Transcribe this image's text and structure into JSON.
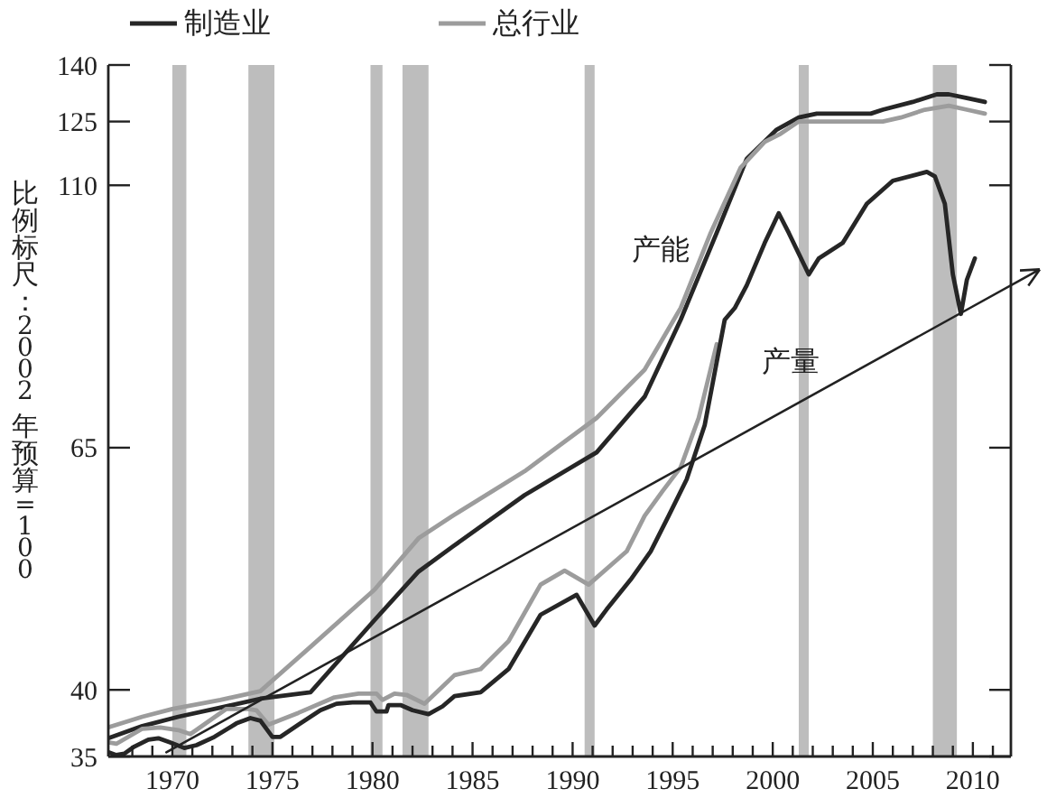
{
  "chart_data": {
    "type": "line",
    "ylabel": "比例标尺：2002 年预算=100",
    "legend": "top left",
    "log": true,
    "xlim": [
      1966.8,
      2011.9
    ],
    "xticks": [
      {
        "value": 1968,
        "label": null
      },
      {
        "value": 1969,
        "label": null
      },
      1970,
      {
        "value": 1971,
        "label": null
      },
      {
        "value": 1972,
        "label": null
      },
      {
        "value": 1973,
        "label": null
      },
      {
        "value": 1974,
        "label": null
      },
      1975,
      {
        "value": 1976,
        "label": null
      },
      {
        "value": 1977,
        "label": null
      },
      {
        "value": 1978,
        "label": null
      },
      {
        "value": 1979,
        "label": null
      },
      1980,
      {
        "value": 1981,
        "label": null
      },
      {
        "value": 1982,
        "label": null
      },
      {
        "value": 1983,
        "label": null
      },
      {
        "value": 1984,
        "label": null
      },
      1985,
      {
        "value": 1986,
        "label": null
      },
      {
        "value": 1987,
        "label": null
      },
      {
        "value": 1988,
        "label": null
      },
      {
        "value": 1989,
        "label": null
      },
      1990,
      {
        "value": 1991,
        "label": null
      },
      {
        "value": 1992,
        "label": null
      },
      {
        "value": 1993,
        "label": null
      },
      {
        "value": 1994,
        "label": null
      },
      1995,
      {
        "value": 1996,
        "label": null
      },
      {
        "value": 1997,
        "label": null
      },
      {
        "value": 1998,
        "label": null
      },
      {
        "value": 1999,
        "label": null
      },
      2000,
      {
        "value": 2001,
        "label": null
      },
      {
        "value": 2002,
        "label": null
      },
      {
        "value": 2003,
        "label": null
      },
      {
        "value": 2004,
        "label": null
      },
      2005,
      {
        "value": 2006,
        "label": null
      },
      {
        "value": 2007,
        "label": null
      },
      {
        "value": 2008,
        "label": null
      },
      {
        "value": 2009,
        "label": null
      },
      2010,
      {
        "value": 2011,
        "label": null
      }
    ],
    "ylim": [
      35,
      140
    ],
    "yticks": [
      35,
      40,
      65,
      110,
      125,
      140
    ],
    "bands": [
      {
        "axis": "x",
        "from": 1970.0,
        "to": 1970.7,
        "color": "#bdbdbd"
      },
      {
        "axis": "x",
        "from": 1973.8,
        "to": 1975.1,
        "color": "#bdbdbd"
      },
      {
        "axis": "x",
        "from": 1979.9,
        "to": 1980.5,
        "color": "#bdbdbd"
      },
      {
        "axis": "x",
        "from": 1981.5,
        "to": 1982.8,
        "color": "#bdbdbd"
      },
      {
        "axis": "x",
        "from": 1990.6,
        "to": 1991.1,
        "color": "#bdbdbd"
      },
      {
        "axis": "x",
        "from": 2001.3,
        "to": 2001.8,
        "color": "#bdbdbd"
      },
      {
        "axis": "x",
        "from": 2008.0,
        "to": 2009.2,
        "color": "#bdbdbd"
      }
    ],
    "annotations": [
      "产能",
      "产量"
    ],
    "series": [
      {
        "name": "制造业",
        "color": "#262626",
        "x": [
          1966.8,
          1968.5,
          1970.3,
          1972.4,
          1974.4,
          1976.9,
          1980.1,
          1982.3,
          1984.0,
          1987.6,
          1991.2,
          1993.6,
          1995.4,
          1997.2,
          1998.7,
          2000.2,
          2001.3,
          2002.2,
          2004.9,
          2005.5,
          2007.0,
          2008.2,
          2008.8,
          2009.7,
          2010.6
        ],
        "values": [
          36.3,
          37.2,
          37.9,
          38.6,
          39.3,
          39.8,
          46.0,
          50.7,
          53.3,
          59.1,
          64.4,
          72,
          84,
          100,
          116,
          123,
          126,
          127,
          127,
          128,
          130,
          132,
          132,
          131,
          130
        ]
      },
      {
        "name": "总行业",
        "color": "#9c9c9c",
        "x": [
          1966.8,
          1968.5,
          1970.0,
          1972.4,
          1974.4,
          1976.9,
          1980.1,
          1982.3,
          1984.0,
          1987.6,
          1991.2,
          1993.6,
          1995.4,
          1996.9,
          1998.4,
          1999.6,
          2000.4,
          2001.3,
          2002.2,
          2005.5,
          2006.4,
          2007.6,
          2008.8,
          2009.7,
          2010.6
        ],
        "values": [
          37.1,
          37.9,
          38.5,
          39.2,
          39.9,
          43.6,
          48.9,
          54.2,
          56.7,
          62.0,
          69,
          76,
          86,
          100,
          114,
          120,
          122,
          125,
          125,
          125,
          126,
          128,
          129,
          128,
          127
        ]
      },
      {
        "color": "#9c9c9c",
        "x": [
          1966.8,
          1967.2,
          1968.5,
          1969.4,
          1970.3,
          1970.9,
          1972.7,
          1973.8,
          1974.2,
          1974.8,
          1976.3,
          1978.1,
          1979.3,
          1980.2,
          1980.5,
          1981.1,
          1981.7,
          1982.6,
          1984.1,
          1985.4,
          1986.8,
          1988.4,
          1989.6,
          1990.8,
          1992.7,
          1993.6,
          1994.5,
          1995.4,
          1996.3,
          1997.2
        ],
        "values": [
          36.0,
          35.9,
          37.0,
          37.1,
          36.9,
          36.6,
          38.5,
          38.5,
          38.4,
          37.3,
          38.2,
          39.4,
          39.7,
          39.7,
          39.2,
          39.7,
          39.6,
          38.9,
          41.2,
          41.7,
          44.1,
          49.4,
          50.8,
          49.4,
          52.8,
          56.7,
          59.6,
          62.5,
          69,
          80
        ]
      },
      {
        "color": "#262626",
        "x": [
          1966.8,
          1967.2,
          1967.6,
          1968.1,
          1968.8,
          1969.3,
          1969.9,
          1970.6,
          1971.2,
          1972.1,
          1973.2,
          1973.9,
          1974.4,
          1975.0,
          1975.4,
          1976.3,
          1977.4,
          1978.2,
          1979.0,
          1979.9,
          1980.2,
          1980.7,
          1980.8,
          1981.4,
          1982.0,
          1982.8,
          1983.5,
          1984.1,
          1985.4,
          1986.8,
          1988.4,
          1990.2,
          1991.1,
          1991.7,
          1992.9,
          1993.9,
          1994.8,
          1995.7,
          1996.6,
          1997.6,
          1998.1,
          1998.7,
          1999.6,
          2000.3,
          2000.8,
          2001.8,
          2002.3,
          2003.5,
          2004.7,
          2006.0,
          2007.7,
          2008.1,
          2008.6,
          2009.0,
          2009.4,
          2009.7,
          2010.1
        ],
        "values": [
          35.3,
          35.1,
          35.2,
          35.7,
          36.2,
          36.3,
          36.0,
          35.6,
          35.8,
          36.4,
          37.4,
          37.8,
          37.6,
          36.4,
          36.4,
          37.3,
          38.4,
          38.9,
          39.0,
          39.0,
          38.3,
          38.3,
          38.8,
          38.8,
          38.4,
          38.1,
          38.7,
          39.5,
          39.8,
          41.7,
          46.5,
          48.4,
          45.5,
          47.0,
          49.9,
          52.8,
          56.7,
          61.0,
          68,
          84,
          86,
          90,
          98,
          104,
          100,
          92,
          95,
          98,
          106,
          111,
          113,
          112,
          106,
          92,
          85,
          91,
          95
        ]
      },
      {
        "color": "#222222",
        "x": [
          1969.7,
          2011.9
        ],
        "values": [
          35.3,
          90
        ]
      }
    ]
  }
}
